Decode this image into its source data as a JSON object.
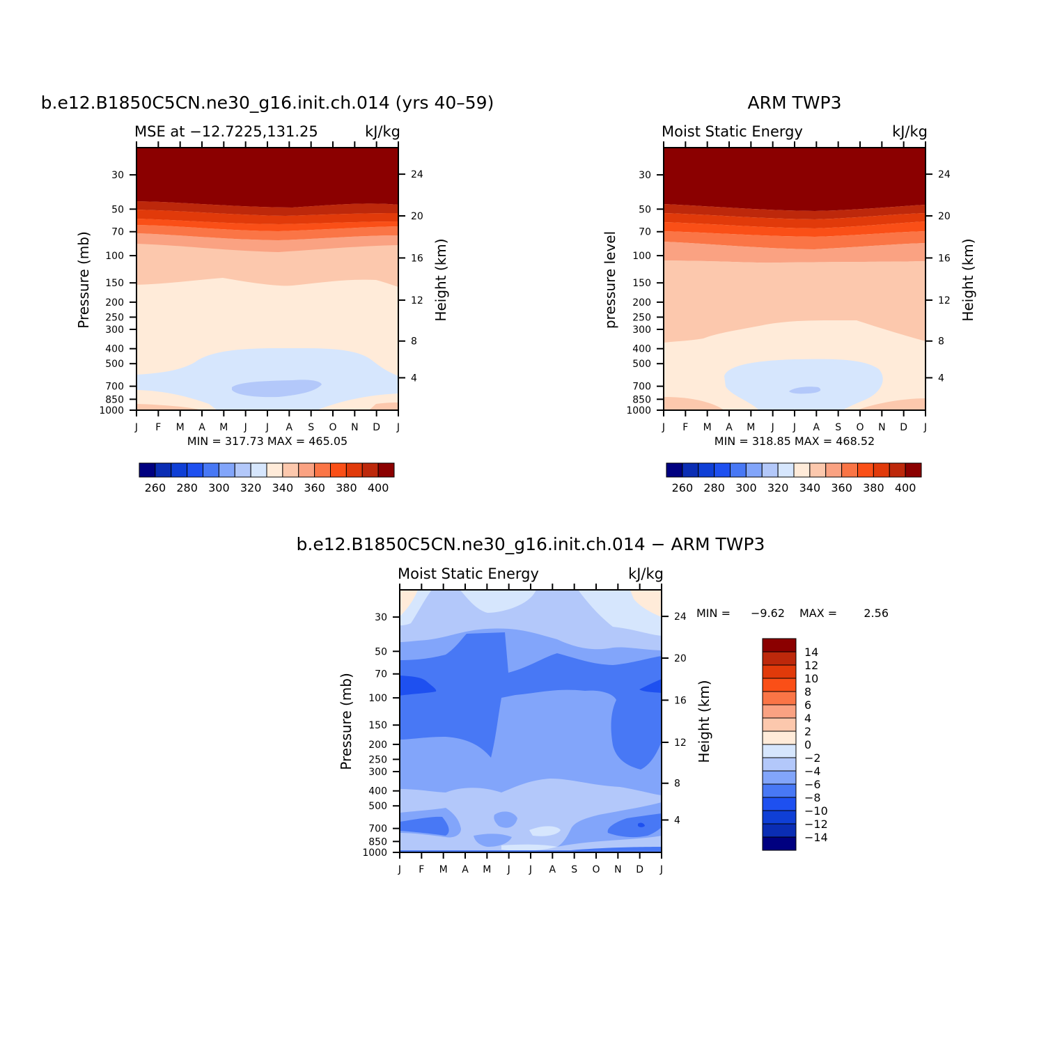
{
  "charts": [
    {
      "id": "model",
      "title": "b.e12.B1850C5CN.ne30_g16.init.ch.014 (yrs 40–59)",
      "left_label": "MSE at −12.7225,131.25",
      "right_label": "kJ/kg",
      "ylabel": "Pressure (mb)",
      "y2label": "Height (km)",
      "minmax": "MIN = 317.73 MAX = 465.05"
    },
    {
      "id": "obs",
      "title": "ARM TWP3",
      "left_label": "Moist Static Energy",
      "right_label": "kJ/kg",
      "ylabel": "pressure level",
      "y2label": "Height (km)",
      "minmax": "MIN = 318.85 MAX = 468.52"
    },
    {
      "id": "diff",
      "title": "b.e12.B1850C5CN.ne30_g16.init.ch.014 − ARM TWP3",
      "left_label": "Moist Static Energy",
      "right_label": "kJ/kg",
      "ylabel": "Pressure (mb)",
      "y2label": "Height (km)",
      "minmax_label": "MIN =",
      "min_val": "−9.62",
      "max_label": "MAX =",
      "max_val": "2.56"
    }
  ],
  "axes": {
    "months": [
      "J",
      "F",
      "M",
      "A",
      "M",
      "J",
      "J",
      "A",
      "S",
      "O",
      "N",
      "D",
      "J"
    ],
    "pressure_ticks": [
      "30",
      "50",
      "70",
      "100",
      "150",
      "200",
      "250",
      "300",
      "400",
      "500",
      "700",
      "850",
      "1000"
    ],
    "height_ticks": [
      "24",
      "20",
      "16",
      "12",
      "8",
      "4"
    ]
  },
  "colorbar_abs": {
    "labels": [
      "260",
      "280",
      "300",
      "320",
      "340",
      "360",
      "380",
      "400"
    ],
    "colors": [
      "#000080",
      "#0a2db4",
      "#0f3fd6",
      "#1e50f0",
      "#4878f5",
      "#82a5fa",
      "#b3c8fa",
      "#d6e6fd",
      "#ffebd9",
      "#fcc8ad",
      "#faa282",
      "#fa7546",
      "#fa4f17",
      "#e13a0a",
      "#bd280b",
      "#8b0000"
    ]
  },
  "colorbar_diff": {
    "labels": [
      "14",
      "12",
      "10",
      "8",
      "6",
      "4",
      "2",
      "0",
      "−2",
      "−4",
      "−6",
      "−8",
      "−10",
      "−12",
      "−14"
    ],
    "colors": [
      "#8b0000",
      "#bd280b",
      "#e13a0a",
      "#fa4f17",
      "#fa7546",
      "#faa282",
      "#fcc8ad",
      "#ffebd9",
      "#d6e6fd",
      "#b3c8fa",
      "#82a5fa",
      "#4878f5",
      "#1e50f0",
      "#0f3fd6",
      "#0a2db4",
      "#000080"
    ]
  },
  "chart_data": [
    {
      "type": "heatmap",
      "title": "b.e12.B1850C5CN.ne30_g16.init.ch.014 (yrs 40–59)",
      "x": [
        "J",
        "F",
        "M",
        "A",
        "M",
        "J",
        "J",
        "A",
        "S",
        "O",
        "N",
        "D",
        "J"
      ],
      "y_pressure_mb": [
        30,
        50,
        70,
        100,
        150,
        200,
        250,
        300,
        400,
        500,
        700,
        850,
        1000
      ],
      "units": "kJ/kg",
      "min": 317.73,
      "max": 465.05,
      "levels": [
        260,
        270,
        280,
        290,
        300,
        310,
        320,
        330,
        340,
        350,
        360,
        370,
        380,
        390,
        400
      ]
    },
    {
      "type": "heatmap",
      "title": "ARM TWP3",
      "x": [
        "J",
        "F",
        "M",
        "A",
        "M",
        "J",
        "J",
        "A",
        "S",
        "O",
        "N",
        "D",
        "J"
      ],
      "y_pressure_mb": [
        30,
        50,
        70,
        100,
        150,
        200,
        250,
        300,
        400,
        500,
        700,
        850,
        1000
      ],
      "units": "kJ/kg",
      "min": 318.85,
      "max": 468.52,
      "levels": [
        260,
        270,
        280,
        290,
        300,
        310,
        320,
        330,
        340,
        350,
        360,
        370,
        380,
        390,
        400
      ]
    },
    {
      "type": "heatmap",
      "title": "b.e12.B1850C5CN.ne30_g16.init.ch.014 − ARM TWP3",
      "x": [
        "J",
        "F",
        "M",
        "A",
        "M",
        "J",
        "J",
        "A",
        "S",
        "O",
        "N",
        "D",
        "J"
      ],
      "y_pressure_mb": [
        30,
        50,
        70,
        100,
        150,
        200,
        250,
        300,
        400,
        500,
        700,
        850,
        1000
      ],
      "units": "kJ/kg",
      "min": -9.62,
      "max": 2.56,
      "levels": [
        -14,
        -12,
        -10,
        -8,
        -6,
        -4,
        -2,
        0,
        2,
        4,
        6,
        8,
        10,
        12,
        14
      ]
    }
  ]
}
